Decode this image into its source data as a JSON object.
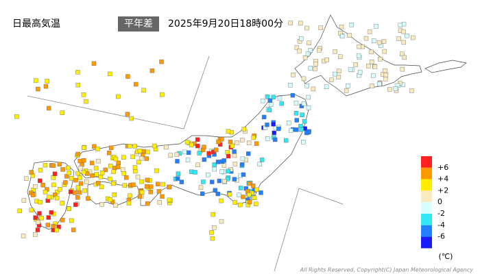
{
  "header": {
    "title": "日最高気温",
    "badge": "平年差",
    "timestamp": "2025年9月20日18時00分"
  },
  "legend": {
    "colors": [
      "#ff2020",
      "#ff9900",
      "#ffee00",
      "#faeac0",
      "#d8ffff",
      "#33e8f5",
      "#2080ff",
      "#1a1aff"
    ],
    "labels": [
      "+6",
      "+4",
      "+2",
      "0",
      "-2",
      "-4",
      "-6"
    ],
    "unit": "(℃)"
  },
  "footer": {
    "copyright": "All Rights Reserved, Copyright(C) Japan Meteorological Agency"
  }
}
